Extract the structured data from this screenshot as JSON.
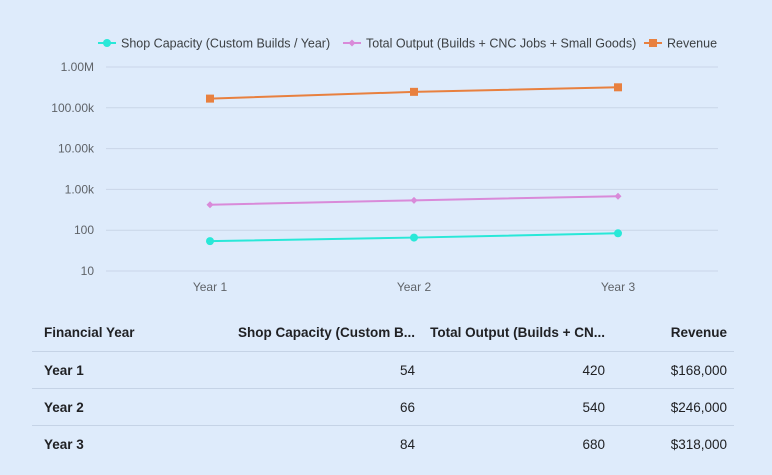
{
  "chart_data": {
    "type": "line",
    "categories": [
      "Year 1",
      "Year 2",
      "Year 3"
    ],
    "series": [
      {
        "name": "Shop Capacity (Custom Builds / Year)",
        "values": [
          54,
          66,
          84
        ],
        "color": "#29e8d8",
        "marker": "circle"
      },
      {
        "name": "Total Output (Builds + CNC Jobs + Small Goods)",
        "values": [
          420,
          540,
          680
        ],
        "color": "#d98ad9",
        "marker": "diamond"
      },
      {
        "name": "Revenue",
        "values": [
          168000,
          246000,
          318000
        ],
        "color": "#e8803f",
        "marker": "square"
      }
    ],
    "y_scale": "log",
    "ylim": [
      10,
      1000000
    ],
    "y_ticks": [
      {
        "value": 1000000,
        "label": "1.00M"
      },
      {
        "value": 100000,
        "label": "100.00k"
      },
      {
        "value": 10000,
        "label": "10.00k"
      },
      {
        "value": 1000,
        "label": "1.00k"
      },
      {
        "value": 100,
        "label": "100"
      },
      {
        "value": 10,
        "label": "10"
      }
    ],
    "grid": true,
    "legend_position": "top"
  },
  "table": {
    "headers": [
      "Financial Year",
      "Shop Capacity (Custom B...",
      "Total Output (Builds + CN...",
      "Revenue"
    ],
    "rows": [
      [
        "Year 1",
        "54",
        "420",
        "$168,000"
      ],
      [
        "Year 2",
        "66",
        "540",
        "$246,000"
      ],
      [
        "Year 3",
        "84",
        "680",
        "$318,000"
      ]
    ]
  }
}
